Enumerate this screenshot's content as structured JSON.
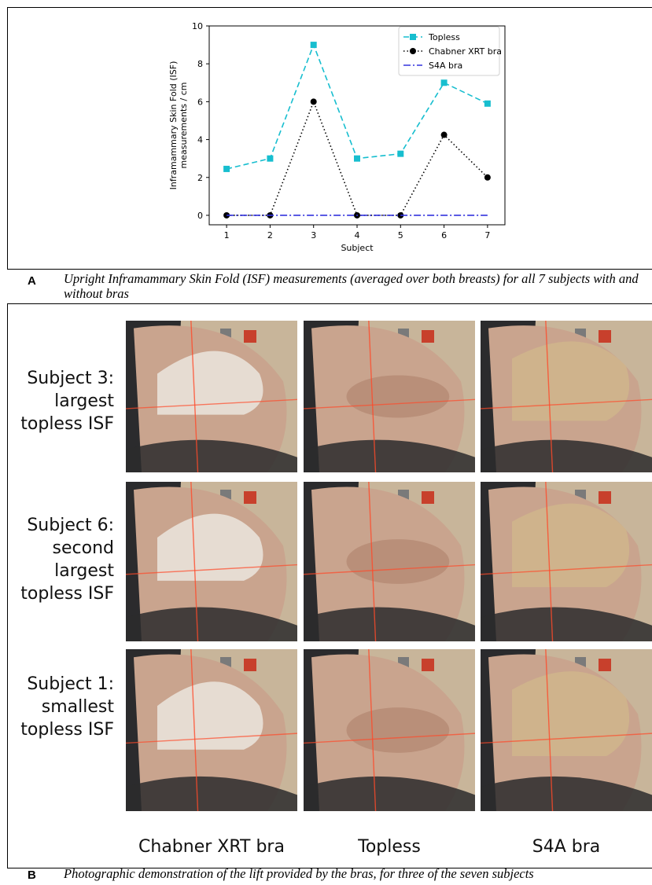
{
  "panel_a": {
    "letter": "A",
    "caption": "Upright Inframammary Skin Fold (ISF) measurements (averaged over both breasts) for all 7 subjects with and without bras"
  },
  "chart_data": {
    "type": "line",
    "x": [
      1,
      2,
      3,
      4,
      5,
      6,
      7
    ],
    "xlabel": "Subject",
    "ylabel": "Inframammary Skin Fold (ISF) measurements / cm",
    "ylabel_lines": [
      "Inframammary Skin Fold (ISF)",
      "measurements / cm"
    ],
    "xlim": [
      0.6,
      7.4
    ],
    "ylim": [
      -0.5,
      10
    ],
    "xticks": [
      1,
      2,
      3,
      4,
      5,
      6,
      7
    ],
    "yticks": [
      0,
      2,
      4,
      6,
      8,
      10
    ],
    "grid": false,
    "legend_position": "top-right",
    "series": [
      {
        "name": "Topless",
        "values": [
          2.45,
          3.0,
          9.0,
          3.0,
          3.25,
          7.0,
          5.9
        ],
        "color": "#17becf",
        "linestyle": "dashed",
        "marker": "square"
      },
      {
        "name": "Chabner XRT bra",
        "values": [
          0,
          0,
          6.0,
          0,
          0,
          4.25,
          2.0
        ],
        "color": "#000000",
        "linestyle": "dotted",
        "marker": "circle"
      },
      {
        "name": "S4A bra",
        "values": [
          0,
          0,
          0,
          0,
          0,
          0,
          0
        ],
        "color": "#3333dd",
        "linestyle": "dashdot",
        "marker": "none"
      }
    ]
  },
  "panel_b": {
    "letter": "B",
    "caption": "Photographic demonstration of the lift provided by the bras, for three of the seven subjects",
    "row_labels": [
      [
        "Subject 3:",
        "largest",
        "topless ISF"
      ],
      [
        "Subject 6:",
        "second",
        "largest",
        "topless ISF"
      ],
      [
        "Subject 1:",
        "smallest",
        "topless ISF"
      ]
    ],
    "column_labels": [
      "Chabner XRT bra",
      "Topless",
      "S4A bra"
    ],
    "colors": {
      "skin": "#c9a48e",
      "wall": "#c8b59a",
      "laser": "#ff4a2a",
      "chair": "#2b2b2d",
      "bra_white": "#eeeae4",
      "s4a_beige": "#cfb58c"
    }
  }
}
